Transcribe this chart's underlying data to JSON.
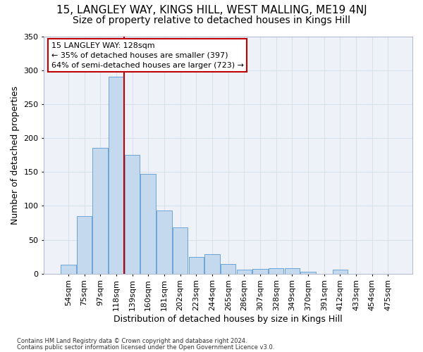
{
  "title1": "15, LANGLEY WAY, KINGS HILL, WEST MALLING, ME19 4NJ",
  "title2": "Size of property relative to detached houses in Kings Hill",
  "xlabel": "Distribution of detached houses by size in Kings Hill",
  "ylabel": "Number of detached properties",
  "categories": [
    "54sqm",
    "75sqm",
    "97sqm",
    "118sqm",
    "139sqm",
    "160sqm",
    "181sqm",
    "202sqm",
    "223sqm",
    "244sqm",
    "265sqm",
    "286sqm",
    "307sqm",
    "328sqm",
    "349sqm",
    "370sqm",
    "391sqm",
    "412sqm",
    "433sqm",
    "454sqm",
    "475sqm"
  ],
  "values": [
    13,
    85,
    185,
    290,
    175,
    147,
    93,
    68,
    25,
    29,
    14,
    6,
    7,
    8,
    8,
    3,
    0,
    6,
    0,
    0,
    0
  ],
  "bar_color": "#c5d9ee",
  "bar_edge_color": "#5b9bd5",
  "grid_color": "#d9e1ef",
  "background_color": "#eef1f8",
  "vline_x": 3.5,
  "vline_color": "#c00000",
  "annotation_text": "15 LANGLEY WAY: 128sqm\n← 35% of detached houses are smaller (397)\n64% of semi-detached houses are larger (723) →",
  "annotation_box_color": "#ffffff",
  "annotation_box_edge": "#c00000",
  "footer1": "Contains HM Land Registry data © Crown copyright and database right 2024.",
  "footer2": "Contains public sector information licensed under the Open Government Licence v3.0.",
  "ylim": [
    0,
    350
  ],
  "yticks": [
    0,
    50,
    100,
    150,
    200,
    250,
    300,
    350
  ],
  "title1_fontsize": 11,
  "title2_fontsize": 10,
  "xlabel_fontsize": 9,
  "ylabel_fontsize": 9,
  "tick_fontsize": 8,
  "annot_fontsize": 8,
  "footer_fontsize": 6
}
